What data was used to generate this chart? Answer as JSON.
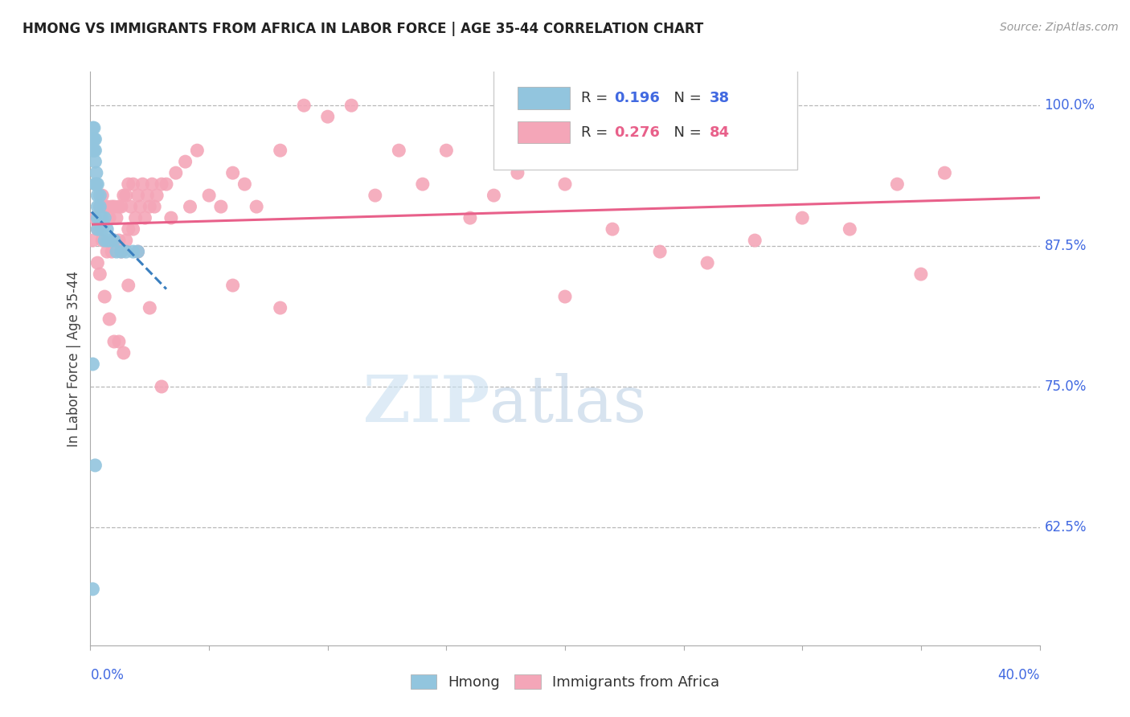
{
  "title": "HMONG VS IMMIGRANTS FROM AFRICA IN LABOR FORCE | AGE 35-44 CORRELATION CHART",
  "source": "Source: ZipAtlas.com",
  "ylabel": "In Labor Force | Age 35-44",
  "right_yticks": [
    0.625,
    0.75,
    0.875,
    1.0
  ],
  "right_yticklabels": [
    "62.5%",
    "75.0%",
    "87.5%",
    "100.0%"
  ],
  "xmin": 0.0,
  "xmax": 0.4,
  "ymin": 0.52,
  "ymax": 1.03,
  "legend_hmong_R": "0.196",
  "legend_hmong_N": "38",
  "legend_africa_R": "0.276",
  "legend_africa_N": "84",
  "hmong_color": "#92c5de",
  "africa_color": "#f4a6b8",
  "hmong_line_color": "#3a7fbf",
  "africa_line_color": "#e8608a",
  "watermark_zip": "ZIP",
  "watermark_atlas": "atlas",
  "hmong_x": [
    0.001,
    0.001,
    0.001,
    0.0015,
    0.0015,
    0.0015,
    0.002,
    0.002,
    0.002,
    0.002,
    0.0025,
    0.0025,
    0.003,
    0.003,
    0.003,
    0.003,
    0.003,
    0.004,
    0.004,
    0.004,
    0.004,
    0.005,
    0.005,
    0.006,
    0.006,
    0.007,
    0.007,
    0.008,
    0.009,
    0.01,
    0.011,
    0.013,
    0.015,
    0.018,
    0.02,
    0.001,
    0.001,
    0.002
  ],
  "hmong_y": [
    0.98,
    0.97,
    0.96,
    0.98,
    0.97,
    0.96,
    0.97,
    0.96,
    0.95,
    0.93,
    0.94,
    0.93,
    0.93,
    0.92,
    0.91,
    0.9,
    0.89,
    0.92,
    0.91,
    0.9,
    0.89,
    0.9,
    0.89,
    0.9,
    0.88,
    0.89,
    0.88,
    0.88,
    0.88,
    0.88,
    0.87,
    0.87,
    0.87,
    0.87,
    0.87,
    0.77,
    0.57,
    0.68
  ],
  "africa_x": [
    0.001,
    0.002,
    0.003,
    0.004,
    0.005,
    0.005,
    0.006,
    0.007,
    0.007,
    0.008,
    0.009,
    0.009,
    0.01,
    0.01,
    0.011,
    0.012,
    0.012,
    0.013,
    0.013,
    0.014,
    0.015,
    0.015,
    0.016,
    0.016,
    0.017,
    0.018,
    0.018,
    0.019,
    0.02,
    0.021,
    0.022,
    0.023,
    0.024,
    0.025,
    0.026,
    0.027,
    0.028,
    0.03,
    0.032,
    0.034,
    0.036,
    0.04,
    0.042,
    0.045,
    0.05,
    0.055,
    0.06,
    0.065,
    0.07,
    0.08,
    0.09,
    0.1,
    0.11,
    0.12,
    0.13,
    0.14,
    0.15,
    0.16,
    0.17,
    0.18,
    0.2,
    0.22,
    0.24,
    0.26,
    0.28,
    0.3,
    0.32,
    0.34,
    0.36,
    0.003,
    0.004,
    0.006,
    0.008,
    0.01,
    0.012,
    0.014,
    0.016,
    0.02,
    0.025,
    0.03,
    0.06,
    0.08,
    0.2,
    0.35
  ],
  "africa_y": [
    0.88,
    0.9,
    0.89,
    0.91,
    0.92,
    0.88,
    0.91,
    0.91,
    0.87,
    0.9,
    0.91,
    0.87,
    0.91,
    0.88,
    0.9,
    0.91,
    0.88,
    0.91,
    0.87,
    0.92,
    0.92,
    0.88,
    0.93,
    0.89,
    0.91,
    0.93,
    0.89,
    0.9,
    0.92,
    0.91,
    0.93,
    0.9,
    0.92,
    0.91,
    0.93,
    0.91,
    0.92,
    0.93,
    0.93,
    0.9,
    0.94,
    0.95,
    0.91,
    0.96,
    0.92,
    0.91,
    0.94,
    0.93,
    0.91,
    0.96,
    1.0,
    0.99,
    1.0,
    0.92,
    0.96,
    0.93,
    0.96,
    0.9,
    0.92,
    0.94,
    0.93,
    0.89,
    0.87,
    0.86,
    0.88,
    0.9,
    0.89,
    0.93,
    0.94,
    0.86,
    0.85,
    0.83,
    0.81,
    0.79,
    0.79,
    0.78,
    0.84,
    0.87,
    0.82,
    0.75,
    0.84,
    0.82,
    0.83,
    0.85
  ]
}
